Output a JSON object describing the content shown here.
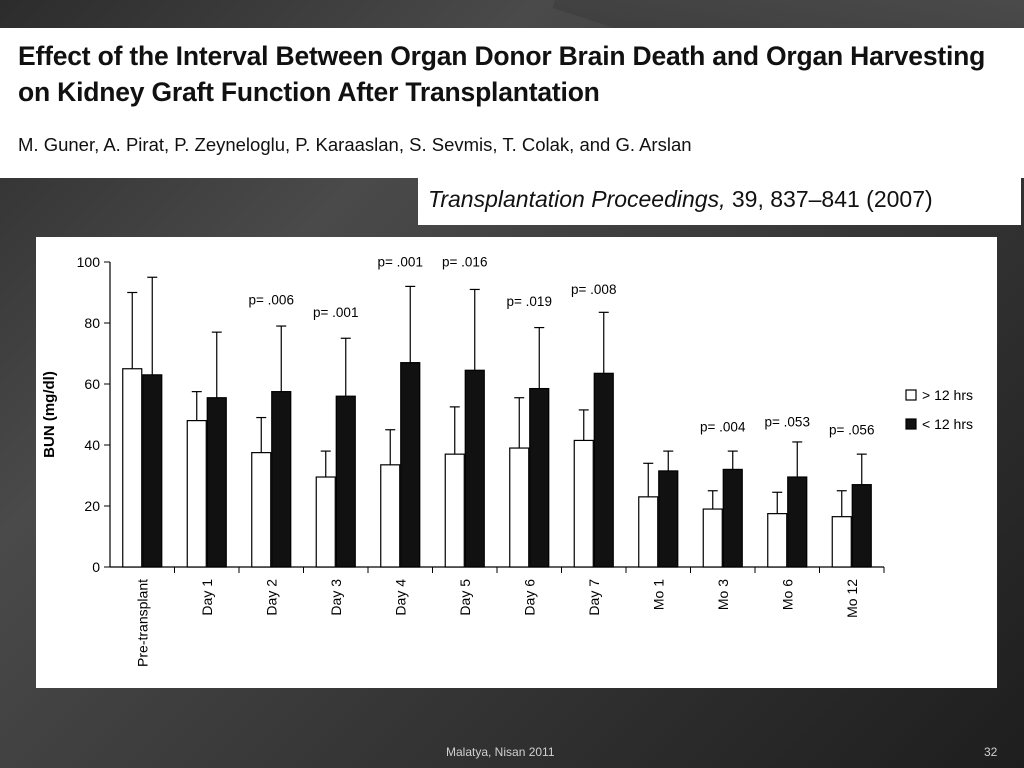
{
  "slide": {
    "title": "Effect of the Interval Between Organ Donor Brain Death and Organ Harvesting on Kidney Graft Function After Transplantation",
    "authors": "M. Guner, A. Pirat, P. Zeyneloglu, P. Karaaslan, S. Sevmis, T. Colak, and G. Arslan",
    "journal_name": "Transplantation Proceedings,",
    "journal_ref": "39, 837–841 (2007)",
    "footer": "Malatya, Nisan 2011",
    "page_number": "32"
  },
  "chart_data": {
    "type": "bar",
    "ylabel": "BUN (mg/dl)",
    "xlabel": "",
    "ylim": [
      0,
      100
    ],
    "yticks": [
      0,
      20,
      40,
      60,
      80,
      100
    ],
    "categories": [
      "Pre-transplant",
      "Day 1",
      "Day 2",
      "Day 3",
      "Day 4",
      "Day 5",
      "Day 6",
      "Day 7",
      "Mo 1",
      "Mo 3",
      "Mo 6",
      "Mo 12"
    ],
    "series": [
      {
        "name": "> 12 hrs",
        "color": "#ffffff",
        "values": [
          65,
          48,
          37.5,
          29.5,
          33.5,
          37,
          39,
          41.5,
          23,
          19,
          17.5,
          16.5
        ],
        "error_upper": [
          90,
          57.5,
          49,
          38,
          45,
          52.5,
          55.5,
          51.5,
          34,
          25,
          24.5,
          25
        ]
      },
      {
        "name": "< 12 hrs",
        "color": "#111111",
        "values": [
          63,
          55.5,
          57.5,
          56,
          67,
          64.5,
          58.5,
          63.5,
          31.5,
          32,
          29.5,
          27
        ],
        "error_upper": [
          95,
          77,
          79,
          75,
          92,
          91,
          78.5,
          83.5,
          38,
          38,
          41,
          37
        ]
      }
    ],
    "annotations": [
      {
        "category_index": 2,
        "text": "p= .006",
        "y": 86
      },
      {
        "category_index": 3,
        "text": "p= .001",
        "y": 82
      },
      {
        "category_index": 4,
        "text": "p= .001",
        "y": 98.5
      },
      {
        "category_index": 5,
        "text": "p= .016",
        "y": 98.5
      },
      {
        "category_index": 6,
        "text": "p= .019",
        "y": 85.5
      },
      {
        "category_index": 7,
        "text": "p= .008",
        "y": 89.5
      },
      {
        "category_index": 9,
        "text": "p= .004",
        "y": 44.5
      },
      {
        "category_index": 10,
        "text": "p= .053",
        "y": 46
      },
      {
        "category_index": 11,
        "text": "p= .056",
        "y": 43.5
      }
    ],
    "legend_position": "right",
    "grid": false
  }
}
